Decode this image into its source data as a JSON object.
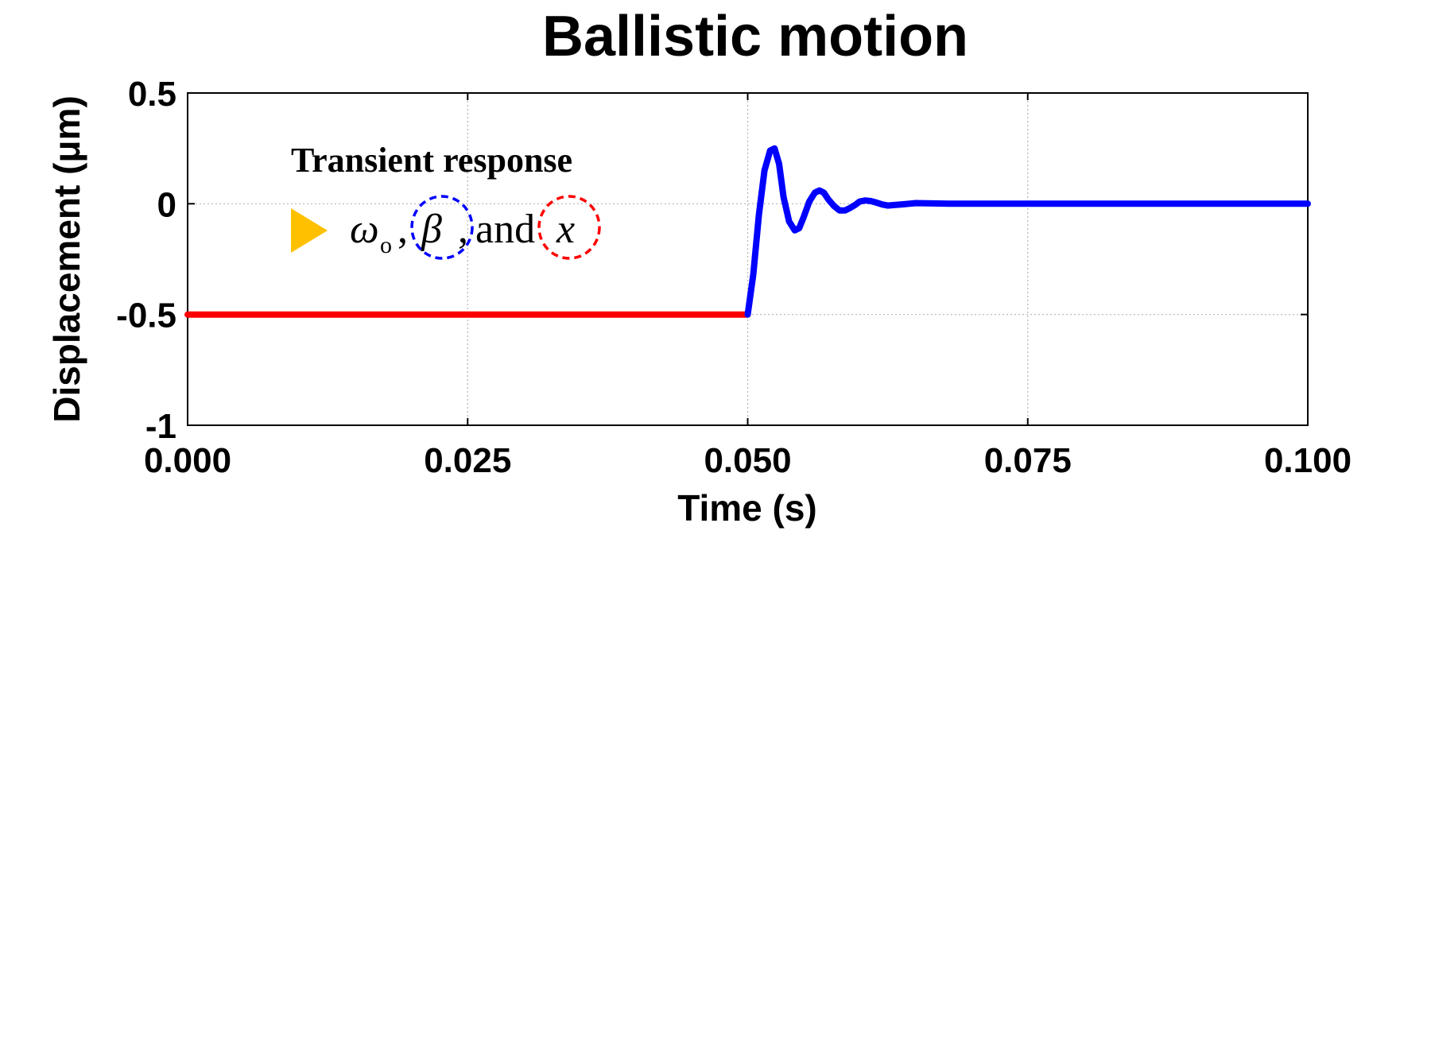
{
  "chart_data": {
    "type": "line",
    "title": "Ballistic motion",
    "xlabel": "Time (s)",
    "ylabel": "Displacement (μm)",
    "xlim": [
      0,
      0.1
    ],
    "ylim": [
      -1,
      0.5
    ],
    "xticks": [
      "0.000",
      "0.025",
      "0.050",
      "0.075",
      "0.100"
    ],
    "xtick_values": [
      0,
      0.025,
      0.05,
      0.075,
      0.1
    ],
    "yticks": [
      "0.5",
      "0",
      "-0.5",
      "-1"
    ],
    "ytick_values": [
      0.5,
      0,
      -0.5,
      -1
    ],
    "grid": true,
    "series": [
      {
        "color": "#ff0000",
        "x": [
          0,
          0.01,
          0.02,
          0.03,
          0.04,
          0.05
        ],
        "y": [
          -0.5,
          -0.5,
          -0.5,
          -0.5,
          -0.5,
          -0.5
        ]
      },
      {
        "color": "#0000ff",
        "x": [
          0.05,
          0.0505,
          0.051,
          0.0515,
          0.052,
          0.0524,
          0.0528,
          0.0532,
          0.0537,
          0.0542,
          0.0546,
          0.055,
          0.0555,
          0.056,
          0.0564,
          0.0568,
          0.0572,
          0.0577,
          0.0582,
          0.0587,
          0.0591,
          0.0596,
          0.06,
          0.0605,
          0.061,
          0.0615,
          0.062,
          0.0625,
          0.063,
          0.064,
          0.065,
          0.066,
          0.068,
          0.07,
          0.075,
          0.08,
          0.085,
          0.09,
          0.095,
          0.1
        ],
        "y": [
          -0.5,
          -0.32,
          -0.05,
          0.15,
          0.24,
          0.25,
          0.18,
          0.03,
          -0.08,
          -0.12,
          -0.11,
          -0.06,
          0.01,
          0.05,
          0.06,
          0.05,
          0.02,
          -0.01,
          -0.03,
          -0.03,
          -0.02,
          -0.005,
          0.01,
          0.015,
          0.012,
          0.005,
          -0.003,
          -0.008,
          -0.006,
          -0.002,
          0.003,
          0.002,
          0.0,
          0.0,
          0.0,
          0.0,
          0.0,
          0.0,
          0.0,
          0.0
        ]
      }
    ],
    "annotations": {
      "heading": "Transient response",
      "omega": "ω",
      "omega_sub": "o",
      "comma1": ",",
      "beta": "β",
      "comma2": ",",
      "and_text": "and",
      "x_var": "x",
      "triangle_color": "#ffc000",
      "beta_circle_color": "#0000ff",
      "x_circle_color": "#ff0000"
    }
  }
}
